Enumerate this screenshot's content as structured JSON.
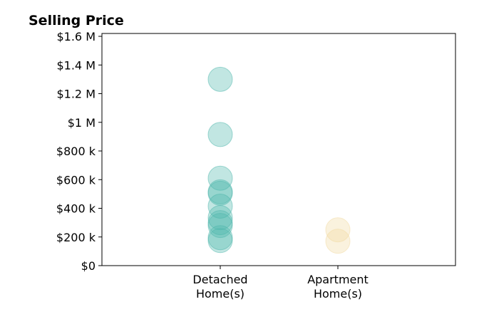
{
  "chart_data": {
    "type": "scatter",
    "title": "Selling Price",
    "xlabel": "",
    "ylabel": "",
    "categories": [
      [
        "Detached",
        "Home(s)"
      ],
      [
        "Apartment",
        "Home(s)"
      ]
    ],
    "ylim": [
      0,
      1620000
    ],
    "yticks": [
      {
        "value": 0,
        "label": "$0"
      },
      {
        "value": 200000,
        "label": "$200 k"
      },
      {
        "value": 400000,
        "label": "$400 k"
      },
      {
        "value": 600000,
        "label": "$600 k"
      },
      {
        "value": 800000,
        "label": "$800 k"
      },
      {
        "value": 1000000,
        "label": "$1 M"
      },
      {
        "value": 1200000,
        "label": "$1.2 M"
      },
      {
        "value": 1400000,
        "label": "$1.4 M"
      },
      {
        "value": 1600000,
        "label": "$1.6 M"
      }
    ],
    "grid": false,
    "series": [
      {
        "category": 0,
        "color": "#4db6ac",
        "values": [
          1300000,
          915000,
          610000,
          515000,
          505000,
          415000,
          335000,
          300000,
          280000,
          195000,
          175000
        ]
      },
      {
        "category": 1,
        "color": "#f1d9a0",
        "values": [
          250000,
          170000
        ]
      }
    ]
  }
}
